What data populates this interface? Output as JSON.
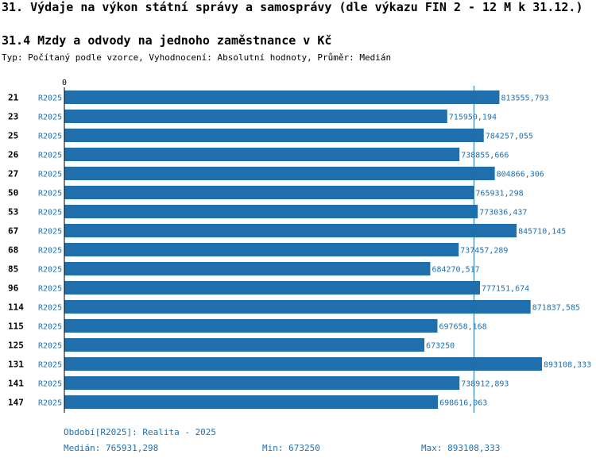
{
  "title": "31. Výdaje na výkon státní správy a samosprávy (dle výkazu FIN 2 - 12 M k 31.12.)",
  "subtitle": "31.4 Mzdy a odvody na jednoho zaměstnance v Kč",
  "description": "Typ: Počítaný podle vzorce, Vyhodnocení: Absolutní hodnoty, Průměr: Medián",
  "colors": {
    "bar": "#1f6fad",
    "label": "#1f6fad",
    "axis": "#000000"
  },
  "chart_data": {
    "type": "bar",
    "orientation": "horizontal",
    "zero_label": "0",
    "categories": [
      "21",
      "23",
      "25",
      "26",
      "27",
      "50",
      "53",
      "67",
      "68",
      "85",
      "96",
      "114",
      "115",
      "125",
      "131",
      "141",
      "147"
    ],
    "series_label": "R2025",
    "values": [
      813555.793,
      715950.194,
      784257.055,
      738855.666,
      804866.306,
      765931.298,
      773036.437,
      845710.145,
      737457.289,
      684270.517,
      777151.674,
      871837.585,
      697658.168,
      673250,
      893108.333,
      738912.893,
      698616.063
    ],
    "value_labels": [
      "813555,793",
      "715950,194",
      "784257,055",
      "738855,666",
      "804866,306",
      "765931,298",
      "773036,437",
      "845710,145",
      "737457,289",
      "684270,517",
      "777151,674",
      "871837,585",
      "697658,168",
      "673250",
      "893108,333",
      "738912,893",
      "698616,063"
    ],
    "xlim": [
      0,
      893108.333
    ],
    "median": 765931.298
  },
  "footer": {
    "period": "Období[R2025]: Realita - 2025",
    "median": "Medián: 765931,298",
    "min": "Min: 673250",
    "max": "Max: 893108,333"
  }
}
